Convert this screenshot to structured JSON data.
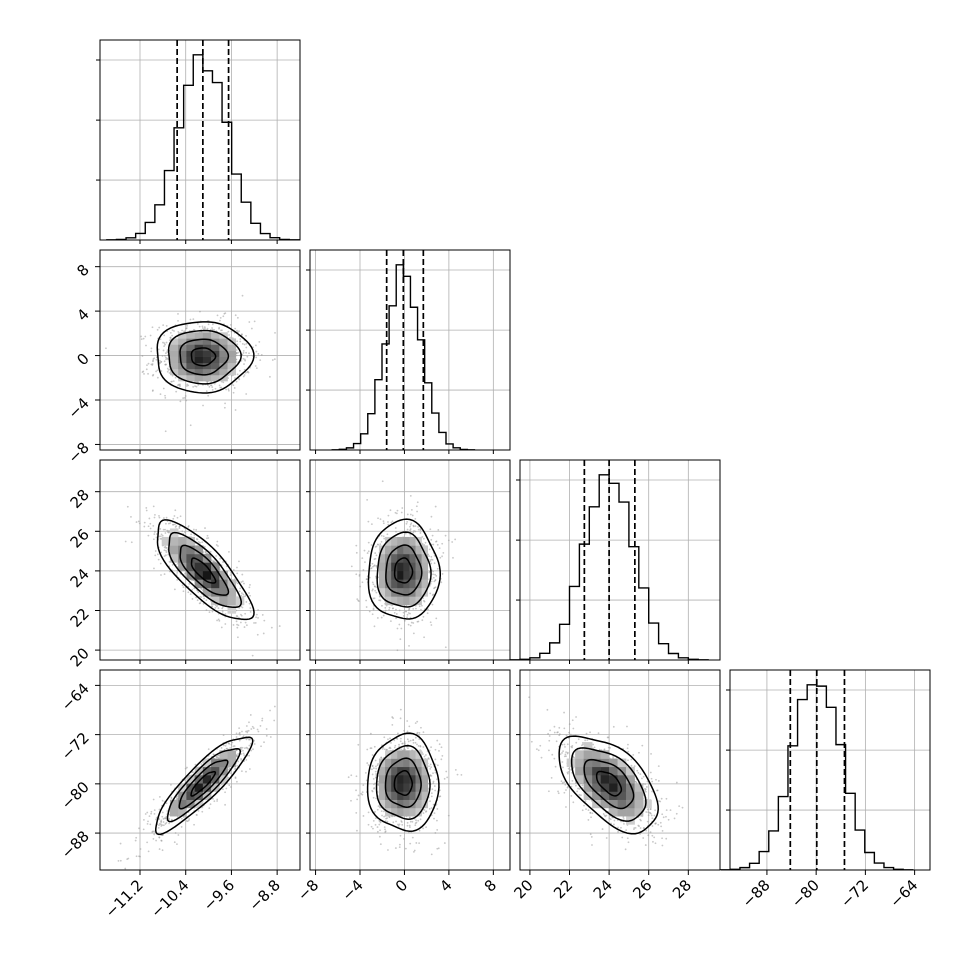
{
  "chart_data": {
    "type": "corner",
    "title": "",
    "variables": [
      {
        "range": [
          -11.9,
          -8.4
        ],
        "ticks": [
          -11.2,
          -10.4,
          -9.6,
          -8.8
        ],
        "tick_labels": [
          "−11.2",
          "−10.4",
          "−9.6",
          "−8.8"
        ],
        "mean": -10.1,
        "std": 0.42,
        "quantiles": [
          -10.55,
          -10.1,
          -9.65
        ]
      },
      {
        "range": [
          -8.5,
          9.5
        ],
        "ticks": [
          -8,
          -4,
          0,
          4,
          8
        ],
        "tick_labels": [
          "−8",
          "−4",
          "0",
          "4",
          "8"
        ],
        "mean": -0.1,
        "std": 1.6,
        "quantiles": [
          -1.6,
          -0.1,
          1.7
        ]
      },
      {
        "range": [
          19.5,
          29.6
        ],
        "ticks": [
          20,
          22,
          24,
          26,
          28
        ],
        "tick_labels": [
          "20",
          "22",
          "24",
          "26",
          "28"
        ],
        "mean": 24.0,
        "std": 1.25,
        "quantiles": [
          22.75,
          24.0,
          25.3
        ]
      },
      {
        "range": [
          -94,
          -61.5
        ],
        "ticks": [
          -88,
          -80,
          -72,
          -64
        ],
        "tick_labels": [
          "−88",
          "−80",
          "−72",
          "−64"
        ],
        "mean": -79.9,
        "std": 3.9,
        "quantiles": [
          -84.2,
          -79.9,
          -75.4
        ]
      }
    ],
    "correlations": [
      [
        1.0,
        0.0,
        -0.78,
        0.88
      ],
      [
        0.0,
        1.0,
        0.0,
        0.0
      ],
      [
        -0.78,
        0.0,
        1.0,
        -0.55
      ],
      [
        0.88,
        0.0,
        -0.55,
        1.0
      ]
    ],
    "contour_levels_sigma": [
      0.5,
      1.0,
      1.5,
      2.0
    ],
    "histogram": {
      "bins": 20,
      "style": "step",
      "quantile_lines": "dashed"
    },
    "grid": true,
    "colors": {
      "points": "#9a9a9a",
      "contours": "#000000",
      "density_max": "#000000",
      "density_min": "#ffffff"
    }
  }
}
